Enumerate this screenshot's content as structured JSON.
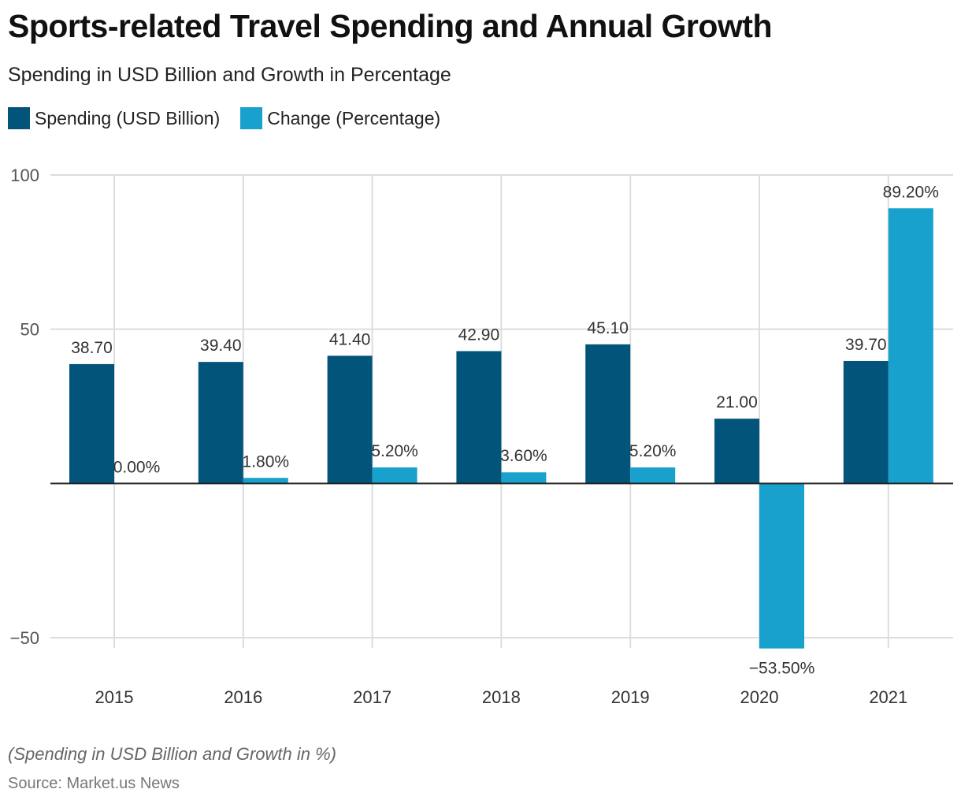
{
  "chart_data": {
    "type": "bar",
    "title": "Sports-related Travel Spending and Annual Growth",
    "subtitle": "Spending in USD Billion and Growth in Percentage",
    "categories": [
      "2015",
      "2016",
      "2017",
      "2018",
      "2019",
      "2020",
      "2021"
    ],
    "series": [
      {
        "name": "Spending (USD Billion)",
        "color": "#02547b",
        "values": [
          38.7,
          39.4,
          41.4,
          42.9,
          45.1,
          21.0,
          39.7
        ],
        "labels": [
          "38.70",
          "39.40",
          "41.40",
          "42.90",
          "45.10",
          "21.00",
          "39.70"
        ]
      },
      {
        "name": "Change (Percentage)",
        "color": "#19a1cd",
        "values": [
          0.0,
          1.8,
          5.2,
          3.6,
          5.2,
          -53.5,
          89.2
        ],
        "labels": [
          "0.00%",
          "1.80%",
          "5.20%",
          "3.60%",
          "5.20%",
          "−53.50%",
          "89.20%"
        ]
      }
    ],
    "yticks": [
      100,
      50,
      -50
    ],
    "ytick_labels": [
      "100",
      "50",
      "−50"
    ],
    "ylim": [
      -50,
      100
    ],
    "xlabel": "",
    "ylabel": "",
    "grid": true,
    "legend_position": "top-left",
    "footnote": "(Spending in USD Billion and Growth in %)",
    "source": "Source: Market.us News"
  }
}
